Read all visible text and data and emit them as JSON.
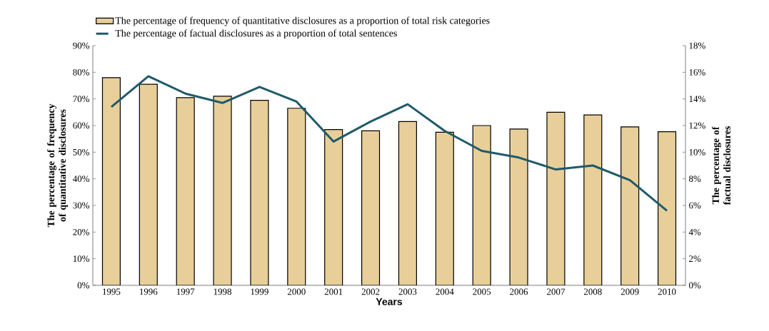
{
  "chart_data": {
    "type": "bar",
    "categories": [
      "1995",
      "1996",
      "1997",
      "1998",
      "1999",
      "2000",
      "2001",
      "2002",
      "2003",
      "2004",
      "2005",
      "2006",
      "2007",
      "2008",
      "2009",
      "2010"
    ],
    "series": [
      {
        "name": "The percentage of frequency of quantitative disclosures as a proportion of total risk categories",
        "color": "#e8cf9a",
        "values": [
          78,
          75.5,
          70.5,
          71,
          69.5,
          66.5,
          58.5,
          58,
          61.5,
          57.5,
          60,
          58.7,
          65,
          64,
          59.5,
          57.7
        ]
      },
      {
        "name": "The percentage of factual disclosures as a proportion of total sentences",
        "type": "line",
        "axis": "y2",
        "color": "#1f5a6a",
        "values": [
          13.4,
          15.7,
          14.4,
          13.7,
          14.9,
          13.8,
          10.8,
          12.3,
          13.6,
          11.6,
          10.1,
          9.6,
          8.7,
          9.0,
          7.9,
          5.6
        ]
      }
    ],
    "xlabel": "Years",
    "ylabel": "The percentage of frequency of quantitative disclosures",
    "y2label": "The percentage of factual disclosures",
    "ylim": [
      0,
      90
    ],
    "yticks": [
      {
        "value": 0,
        "label": "0%"
      },
      {
        "value": 10,
        "label": "10%"
      },
      {
        "value": 20,
        "label": "20%"
      },
      {
        "value": 30,
        "label": "30%"
      },
      {
        "value": 40,
        "label": "40%"
      },
      {
        "value": 50,
        "label": "50%"
      },
      {
        "value": 60,
        "label": "60%"
      },
      {
        "value": 70,
        "label": "70%"
      },
      {
        "value": 80,
        "label": "80%"
      },
      {
        "value": 90,
        "label": "90%"
      }
    ],
    "y2lim": [
      0,
      18
    ],
    "y2ticks": [
      {
        "value": 0,
        "label": "0%"
      },
      {
        "value": 2,
        "label": "2%"
      },
      {
        "value": 4,
        "label": "4%"
      },
      {
        "value": 6,
        "label": "6%"
      },
      {
        "value": 8,
        "label": "8%"
      },
      {
        "value": 10,
        "label": "10%"
      },
      {
        "value": 12,
        "label": "12%"
      },
      {
        "value": 14,
        "label": "14%"
      },
      {
        "value": 16,
        "label": "16%"
      },
      {
        "value": 18,
        "label": "18%"
      }
    ],
    "legend": "top"
  }
}
